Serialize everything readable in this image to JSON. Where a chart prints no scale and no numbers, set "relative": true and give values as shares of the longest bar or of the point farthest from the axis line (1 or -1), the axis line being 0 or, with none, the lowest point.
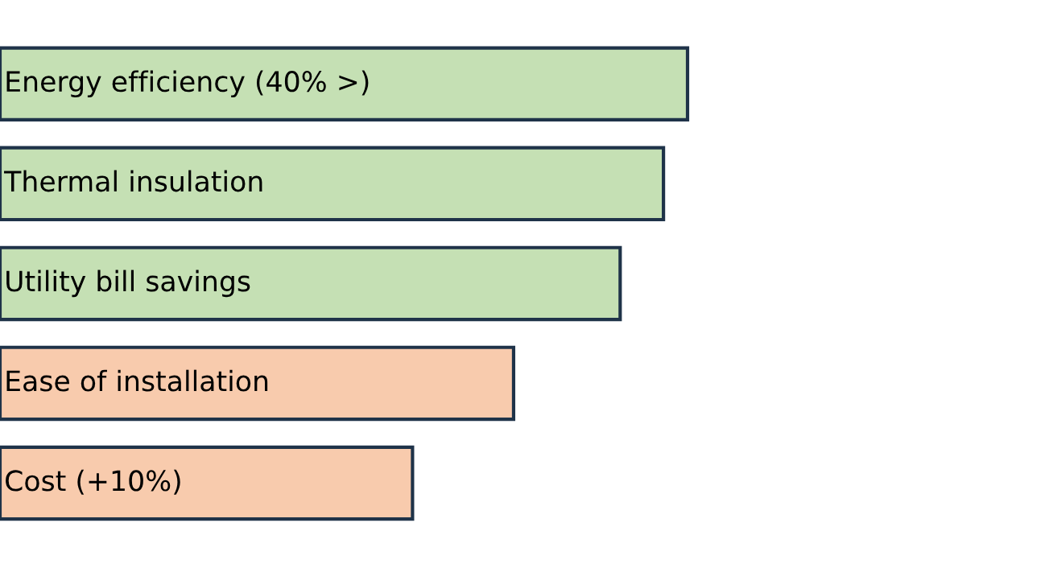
{
  "chart_data": {
    "type": "bar",
    "orientation": "horizontal",
    "relative": true,
    "categories": [
      "Energy efficiency (40% >)",
      "Thermal insulation",
      "Utility bill savings",
      "Ease of installation",
      "Cost (+10%)"
    ],
    "values": [
      1,
      0.965,
      0.902,
      0.747,
      0.6
    ],
    "colors": [
      "#c5e0b4",
      "#c5e0b4",
      "#c5e0b4",
      "#f8cbad",
      "#f8cbad"
    ]
  }
}
